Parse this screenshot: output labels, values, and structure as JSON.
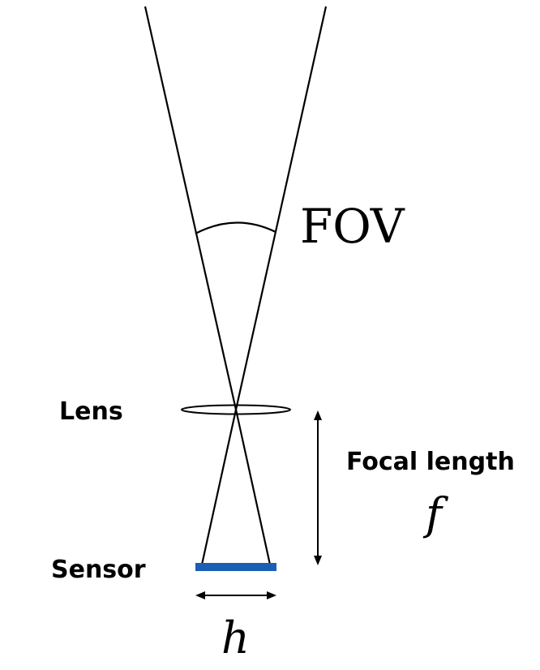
{
  "labels": {
    "fov": "FOV",
    "lens": "Lens",
    "sensor": "Sensor",
    "focal_length": "Focal length",
    "focal_symbol": "f",
    "sensor_symbol": "h"
  },
  "colors": {
    "lines": "#000000",
    "sensor": "#1a5fb4"
  }
}
